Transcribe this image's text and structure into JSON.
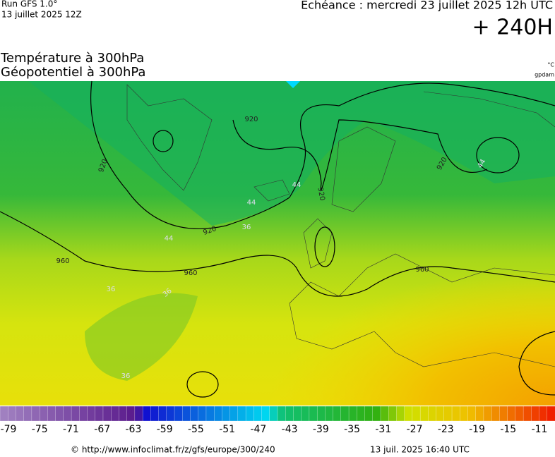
{
  "header": {
    "run": "Run GFS 1.0°",
    "date": "13 juillet 2025 12Z",
    "echeance": "Echéance : mercredi 23 juillet 2025 12h UTC",
    "lead": "+ 240H",
    "title1": "Température à 300hPa",
    "title2": "Géopotentiel à 300hPa",
    "unit1": "°C",
    "unit2": "gpdam"
  },
  "contour_labels": [
    "920",
    "920",
    "920",
    "920",
    "920",
    "960",
    "960",
    "960",
    "44",
    "44",
    "44",
    "44",
    "36",
    "36",
    "36",
    "36"
  ],
  "colorbar": {
    "ticks": [
      -79,
      -75,
      -71,
      -67,
      -63,
      -59,
      -55,
      -51,
      -47,
      -43,
      -39,
      -35,
      -31,
      -27,
      -23,
      -19,
      -15,
      -11
    ]
  },
  "footer": {
    "url": "© http://www.infoclimat.fr/z/gfs/europe/300/240",
    "stamp": "13 juil. 2025 16:40 UTC"
  }
}
